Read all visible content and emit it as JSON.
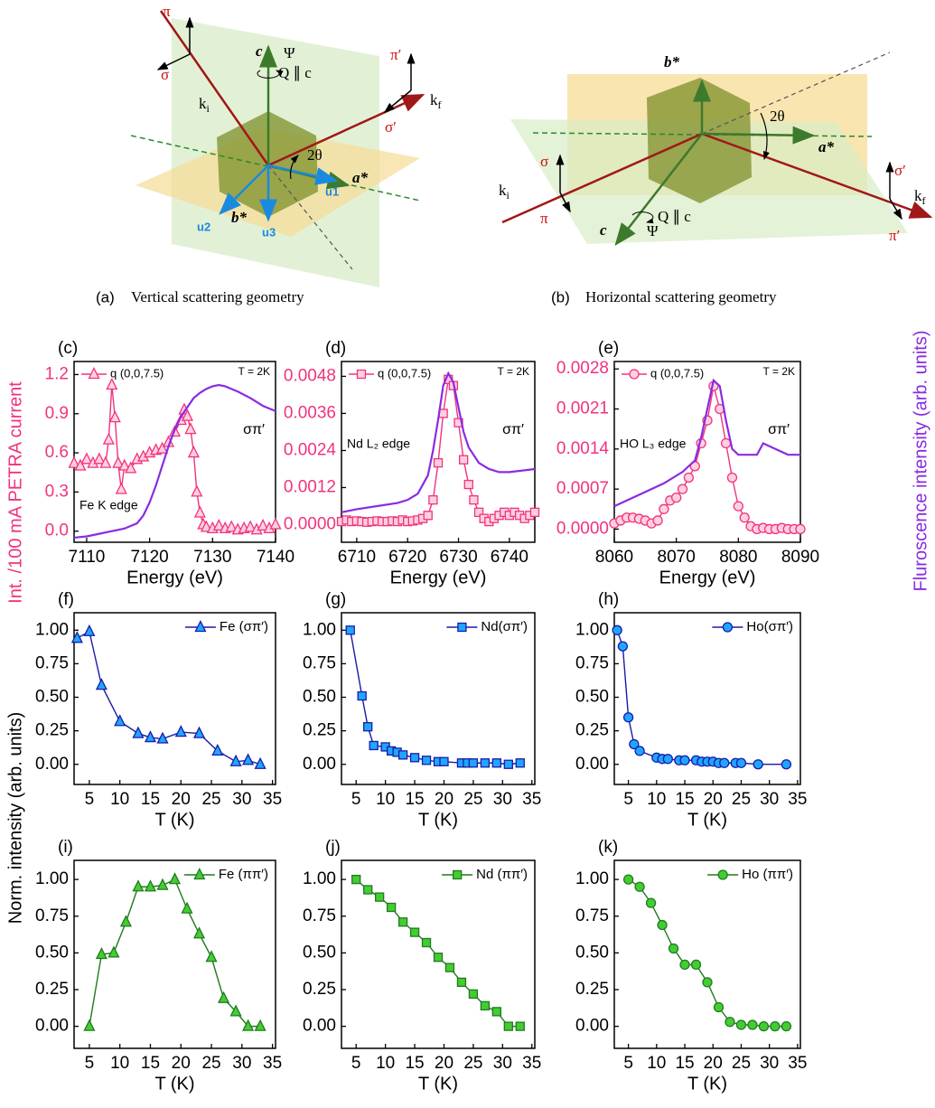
{
  "diagrams": [
    {
      "caption": {
        "label": "(a)",
        "text": "Vertical scattering geometry"
      },
      "labels": [
        "π",
        "σ",
        {
          "text": "k",
          "sub": "i"
        },
        "c",
        "Ψ",
        "Q ∥ c",
        "π′",
        "σ′",
        {
          "text": "k",
          "sub": "f"
        },
        "2θ",
        "a*",
        "u1",
        "u2",
        "b*",
        "u3"
      ]
    },
    {
      "caption": {
        "label": "(b)",
        "text": "Horizontal scattering geometry"
      },
      "labels": [
        "b*",
        "2θ",
        "a*",
        "σ",
        {
          "text": "k",
          "sub": "i"
        },
        "π",
        "Q ∥ c",
        "c",
        "Ψ",
        "σ′",
        {
          "text": "k",
          "sub": "f"
        },
        "π′"
      ]
    }
  ],
  "axis_titles": {
    "left_top": "Int. /100 mA PETRA current",
    "right": "Fluroscence intensity (arb. units)",
    "left_bottom": "Norm. intensity (arb. units)"
  },
  "chart_data": [
    {
      "type": "line",
      "panel_label": "(c)",
      "x_label": "Energy (eV)",
      "legend": "upper left",
      "xlim": [
        7108,
        7140
      ],
      "xticks": [
        7110,
        7120,
        7130,
        7140
      ],
      "ylim": [
        -0.085,
        1.3
      ],
      "yticks": [
        {
          "value": 0,
          "label": "0.0"
        },
        0.3,
        0.6,
        0.9,
        1.2
      ],
      "y2lim": [
        -0.085,
        1.3
      ],
      "annotations": [
        "T = 2K",
        "σπ′",
        "Fe K edge"
      ],
      "series": [
        {
          "name": "q (0,0,7.5)",
          "color": "#f0337f",
          "marker": "triangle",
          "marker_fill": "#ffd0e0",
          "x": [
            7108,
            7109,
            7110,
            7111,
            7112,
            7113,
            7113.5,
            7114,
            7114.5,
            7115,
            7115.5,
            7116,
            7117,
            7118,
            7119,
            7120,
            7121,
            7122,
            7123,
            7124,
            7125,
            7125.5,
            7126,
            7126.5,
            7127,
            7127.5,
            7128,
            7128.5,
            7129,
            7130,
            7131,
            7132,
            7133,
            7134,
            7135,
            7136,
            7137,
            7138,
            7139,
            7140
          ],
          "values": [
            0.52,
            0.5,
            0.55,
            0.52,
            0.55,
            0.52,
            0.7,
            1.12,
            0.87,
            0.52,
            0.32,
            0.5,
            0.48,
            0.55,
            0.57,
            0.6,
            0.62,
            0.63,
            0.68,
            0.76,
            0.85,
            0.93,
            0.88,
            0.78,
            0.6,
            0.3,
            0.14,
            0.05,
            0.03,
            0.02,
            0.04,
            0.02,
            0.03,
            0.01,
            0.02,
            0.03,
            0.01,
            0.04,
            0.02,
            0.05
          ]
        },
        {
          "color": "#8a2be2",
          "axis": "y2",
          "x": [
            7108,
            7110,
            7112,
            7114,
            7116,
            7118,
            7119,
            7120,
            7121,
            7122,
            7123,
            7124,
            7125,
            7126,
            7127,
            7128,
            7129,
            7130,
            7131,
            7132,
            7134,
            7136,
            7138,
            7140
          ],
          "values": [
            -0.05,
            -0.04,
            -0.02,
            0.0,
            0.02,
            0.06,
            0.12,
            0.22,
            0.35,
            0.5,
            0.65,
            0.78,
            0.88,
            0.95,
            1.02,
            1.06,
            1.09,
            1.11,
            1.12,
            1.11,
            1.07,
            1.02,
            0.96,
            0.92
          ]
        }
      ]
    },
    {
      "type": "line",
      "panel_label": "(d)",
      "x_label": "Energy (eV)",
      "legend": "upper left",
      "xlim": [
        6707,
        6745
      ],
      "xticks": [
        6710,
        6720,
        6730,
        6740
      ],
      "ylim": [
        -0.00057,
        0.00528
      ],
      "yticks": [
        {
          "value": 0,
          "label": "0.0000"
        },
        0.0012,
        0.0024,
        0.0036,
        0.0048
      ],
      "y2lim": [
        -0.00057,
        0.00528
      ],
      "annotations": [
        "T = 2K",
        "σπ′",
        "Nd L₂ edge"
      ],
      "series": [
        {
          "name": "q (0,0,7.5)",
          "color": "#f0337f",
          "marker": "square",
          "marker_fill": "#ffd0e0",
          "x": [
            6707,
            6708,
            6709,
            6710,
            6711,
            6712,
            6713,
            6714,
            6715,
            6716,
            6717,
            6718,
            6719,
            6720,
            6721,
            6722,
            6723,
            6724,
            6725,
            6726,
            6727,
            6728,
            6729,
            6730,
            6731,
            6732,
            6733,
            6734,
            6735,
            6736,
            6737,
            6738,
            6739,
            6740,
            6741,
            6742,
            6743,
            6744,
            6745
          ],
          "values": [
            0.0001,
            0.00015,
            0.0001,
            0.00012,
            0.0001,
            8e-05,
            0.0001,
            0.00012,
            0.0001,
            0.0001,
            0.00012,
            0.0001,
            0.00015,
            0.0001,
            0.00012,
            0.00015,
            0.0002,
            0.0003,
            0.0008,
            0.002,
            0.0036,
            0.0047,
            0.0045,
            0.0033,
            0.0021,
            0.0013,
            0.0008,
            0.0004,
            0.0002,
            0.0001,
            0.0002,
            0.0003,
            0.0004,
            0.0003,
            0.0004,
            0.0003,
            0.0002,
            0.0003,
            0.0004
          ]
        },
        {
          "color": "#8a2be2",
          "axis": "y2",
          "x": [
            6707,
            6710,
            6714,
            6718,
            6720,
            6722,
            6724,
            6725,
            6726,
            6727,
            6728,
            6729,
            6730,
            6731,
            6732,
            6734,
            6736,
            6738,
            6740,
            6745
          ],
          "values": [
            0.0004,
            0.0005,
            0.0006,
            0.0007,
            0.0008,
            0.001,
            0.0016,
            0.0024,
            0.0034,
            0.0045,
            0.0049,
            0.0046,
            0.0038,
            0.003,
            0.0025,
            0.002,
            0.0018,
            0.0017,
            0.0017,
            0.0018
          ]
        }
      ]
    },
    {
      "type": "line",
      "panel_label": "(e)",
      "x_label": "Energy (eV)",
      "legend": "upper left",
      "xlim": [
        8060,
        8090
      ],
      "xticks": [
        8060,
        8070,
        8080,
        8090
      ],
      "ylim": [
        -0.00023,
        0.00293
      ],
      "yticks": [
        {
          "value": 0,
          "label": "0.0000"
        },
        0.0007,
        0.0014,
        0.0021,
        0.0028
      ],
      "y2lim": [
        -0.00023,
        0.00293
      ],
      "annotations": [
        "T = 2K",
        "σπ′",
        "HO L₃ edge"
      ],
      "series": [
        {
          "name": "q (0,0,7.5)",
          "color": "#f0337f",
          "marker": "circle",
          "marker_fill": "#ffd0e0",
          "x": [
            8060,
            8061,
            8062,
            8063,
            8064,
            8065,
            8066,
            8067,
            8068,
            8069,
            8070,
            8071,
            8072,
            8073,
            8074,
            8075,
            8076,
            8077,
            8078,
            8079,
            8080,
            8081,
            8082,
            8083,
            8084,
            8085,
            8086,
            8087,
            8088,
            8089,
            8090
          ],
          "values": [
            0.0001,
            0.00015,
            0.0002,
            0.0002,
            0.00018,
            0.00015,
            0.0001,
            0.00015,
            0.00035,
            0.0005,
            0.00055,
            0.0007,
            0.0009,
            0.0011,
            0.0015,
            0.0019,
            0.0025,
            0.0021,
            0.0015,
            0.0009,
            0.0004,
            0.0002,
            5e-05,
            0,
            2e-05,
            0,
            0,
            2e-05,
            0,
            0,
            0
          ]
        },
        {
          "color": "#8a2be2",
          "axis": "y2",
          "x": [
            8060,
            8064,
            8068,
            8071,
            8073,
            8074,
            8075,
            8076,
            8077,
            8078,
            8079,
            8080,
            8083,
            8084,
            8086,
            8088,
            8090
          ],
          "values": [
            0.0004,
            0.0006,
            0.0008,
            0.001,
            0.0012,
            0.0016,
            0.0021,
            0.0026,
            0.0025,
            0.0019,
            0.0014,
            0.0013,
            0.0013,
            0.0015,
            0.0014,
            0.0013,
            0.0013
          ]
        }
      ]
    },
    {
      "type": "line",
      "panel_label": "(f)",
      "x_label": "T (K)",
      "legend": "upper right",
      "xlim": [
        2.5,
        35.5
      ],
      "xticks": [
        5,
        10,
        15,
        20,
        25,
        30,
        35
      ],
      "ylim": [
        -0.15,
        1.13
      ],
      "yticks": [
        {
          "value": 0,
          "label": "0.00"
        },
        0.25,
        {
          "value": 0.5,
          "label": "0.50"
        },
        0.75,
        {
          "value": 1,
          "label": "1.00"
        }
      ],
      "series": [
        {
          "name": "Fe (σπ′)",
          "color": "#1a1aa8",
          "marker": "triangle",
          "marker_fill": "#1ea7ff",
          "x": [
            3,
            5,
            7,
            10,
            13,
            15,
            17,
            20,
            23,
            26,
            29,
            31,
            33
          ],
          "values": [
            0.94,
            0.99,
            0.59,
            0.32,
            0.23,
            0.2,
            0.19,
            0.24,
            0.23,
            0.1,
            0.02,
            0.03,
            0.0
          ]
        }
      ]
    },
    {
      "type": "line",
      "panel_label": "(g)",
      "x_label": "T (K)",
      "legend": "upper right",
      "xlim": [
        2.5,
        35.5
      ],
      "xticks": [
        5,
        10,
        15,
        20,
        25,
        30,
        35
      ],
      "ylim": [
        -0.15,
        1.13
      ],
      "yticks": [
        {
          "value": 0,
          "label": "0.00"
        },
        0.25,
        {
          "value": 0.5,
          "label": "0.50"
        },
        0.75,
        {
          "value": 1,
          "label": "1.00"
        }
      ],
      "series": [
        {
          "name": "Nd(σπ′)",
          "color": "#1a1aa8",
          "marker": "square",
          "marker_fill": "#1ea7ff",
          "x": [
            4,
            6,
            7,
            8,
            10,
            11,
            12,
            13,
            15,
            17,
            19,
            20,
            23,
            24,
            25,
            27,
            29,
            31,
            33
          ],
          "values": [
            1.0,
            0.51,
            0.28,
            0.14,
            0.13,
            0.1,
            0.09,
            0.07,
            0.05,
            0.03,
            0.02,
            0.02,
            0.01,
            0.01,
            0.01,
            0.01,
            0.01,
            0.0,
            0.01
          ]
        }
      ]
    },
    {
      "type": "line",
      "panel_label": "(h)",
      "x_label": "T (K)",
      "legend": "upper right",
      "xlim": [
        2.5,
        35.5
      ],
      "xticks": [
        5,
        10,
        15,
        20,
        25,
        30,
        35
      ],
      "ylim": [
        -0.15,
        1.13
      ],
      "yticks": [
        {
          "value": 0,
          "label": "0.00"
        },
        0.25,
        {
          "value": 0.5,
          "label": "0.50"
        },
        0.75,
        {
          "value": 1,
          "label": "1.00"
        }
      ],
      "series": [
        {
          "name": "Ho(σπ′)",
          "color": "#1a1aa8",
          "marker": "circle",
          "marker_fill": "#1ea7ff",
          "x": [
            3,
            4,
            5,
            6,
            7,
            10,
            11,
            12,
            14,
            15,
            17,
            18,
            19,
            20,
            21,
            22,
            24,
            25,
            28,
            33
          ],
          "values": [
            1.0,
            0.88,
            0.35,
            0.15,
            0.1,
            0.05,
            0.04,
            0.04,
            0.03,
            0.03,
            0.03,
            0.02,
            0.02,
            0.02,
            0.01,
            0.01,
            0.01,
            0.01,
            0.0,
            0.0
          ]
        }
      ]
    },
    {
      "type": "line",
      "panel_label": "(i)",
      "x_label": "T (K)",
      "legend": "upper right",
      "xlim": [
        2.5,
        35.5
      ],
      "xticks": [
        5,
        10,
        15,
        20,
        25,
        30,
        35
      ],
      "ylim": [
        -0.15,
        1.13
      ],
      "yticks": [
        {
          "value": 0,
          "label": "0.00"
        },
        0.25,
        {
          "value": 0.5,
          "label": "0.50"
        },
        0.75,
        {
          "value": 1,
          "label": "1.00"
        }
      ],
      "series": [
        {
          "name": "Fe (ππ′)",
          "color": "#1f7a1f",
          "marker": "triangle",
          "marker_fill": "#44cc33",
          "x": [
            5,
            7,
            9,
            11,
            13,
            15,
            17,
            19,
            21,
            23,
            25,
            27,
            29,
            31,
            33
          ],
          "values": [
            0.0,
            0.49,
            0.5,
            0.71,
            0.95,
            0.95,
            0.96,
            1.0,
            0.8,
            0.63,
            0.47,
            0.19,
            0.1,
            0.0,
            0.0
          ]
        }
      ]
    },
    {
      "type": "line",
      "panel_label": "(j)",
      "x_label": "T (K)",
      "legend": "upper right",
      "xlim": [
        2.5,
        35.5
      ],
      "xticks": [
        5,
        10,
        15,
        20,
        25,
        30,
        35
      ],
      "ylim": [
        -0.15,
        1.13
      ],
      "yticks": [
        {
          "value": 0,
          "label": "0.00"
        },
        0.25,
        {
          "value": 0.5,
          "label": "0.50"
        },
        0.75,
        {
          "value": 1,
          "label": "1.00"
        }
      ],
      "series": [
        {
          "name": "Nd (ππ′)",
          "color": "#1f7a1f",
          "marker": "square",
          "marker_fill": "#44cc33",
          "x": [
            5,
            7,
            9,
            11,
            13,
            15,
            17,
            19,
            21,
            23,
            25,
            27,
            29,
            31,
            33
          ],
          "values": [
            1.0,
            0.93,
            0.88,
            0.81,
            0.71,
            0.64,
            0.57,
            0.47,
            0.4,
            0.3,
            0.22,
            0.14,
            0.1,
            0.0,
            0.0
          ]
        }
      ]
    },
    {
      "type": "line",
      "panel_label": "(k)",
      "x_label": "T (K)",
      "legend": "upper right",
      "xlim": [
        2.5,
        35.5
      ],
      "xticks": [
        5,
        10,
        15,
        20,
        25,
        30,
        35
      ],
      "ylim": [
        -0.15,
        1.13
      ],
      "yticks": [
        {
          "value": 0,
          "label": "0.00"
        },
        0.25,
        {
          "value": 0.5,
          "label": "0.50"
        },
        0.75,
        {
          "value": 1,
          "label": "1.00"
        }
      ],
      "series": [
        {
          "name": "Ho (ππ′)",
          "color": "#1f7a1f",
          "marker": "circle",
          "marker_fill": "#44cc33",
          "x": [
            5,
            7,
            9,
            11,
            13,
            15,
            17,
            19,
            21,
            23,
            25,
            27,
            29,
            31,
            33
          ],
          "values": [
            1.0,
            0.95,
            0.84,
            0.69,
            0.53,
            0.42,
            0.42,
            0.3,
            0.13,
            0.03,
            0.01,
            0.01,
            0.0,
            0.0,
            0.0
          ]
        }
      ]
    }
  ]
}
